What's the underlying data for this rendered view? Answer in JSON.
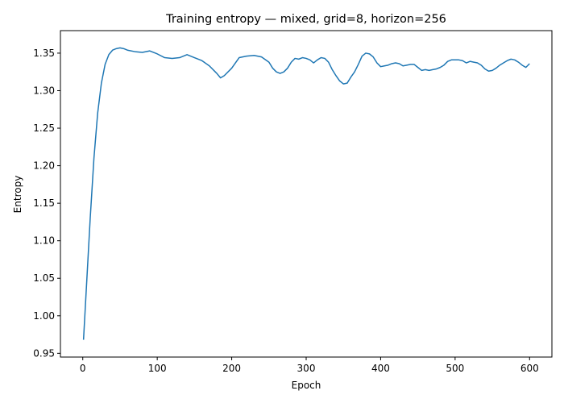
{
  "chart_data": {
    "type": "line",
    "title": "Training entropy — mixed, grid=8, horizon=256",
    "xlabel": "Epoch",
    "ylabel": "Entropy",
    "xlim": [
      -30,
      630
    ],
    "ylim": [
      0.945,
      1.38
    ],
    "xticks": [
      0,
      100,
      200,
      300,
      400,
      500,
      600
    ],
    "yticks": [
      0.95,
      1.0,
      1.05,
      1.1,
      1.15,
      1.2,
      1.25,
      1.3,
      1.35
    ],
    "ytick_labels": [
      "0.95",
      "1.00",
      "1.05",
      "1.10",
      "1.15",
      "1.20",
      "1.25",
      "1.30",
      "1.35"
    ],
    "xtick_labels": [
      "0",
      "100",
      "200",
      "300",
      "400",
      "500",
      "600"
    ],
    "grid": false,
    "line_color": "#1f77b4",
    "series": [
      {
        "x": [
          1,
          5,
          10,
          15,
          20,
          25,
          30,
          35,
          40,
          45,
          50,
          55,
          60,
          70,
          80,
          90,
          100,
          110,
          120,
          130,
          140,
          150,
          160,
          170,
          180,
          185,
          190,
          200,
          210,
          220,
          230,
          240,
          250,
          255,
          260,
          265,
          270,
          275,
          280,
          285,
          290,
          295,
          300,
          305,
          310,
          315,
          320,
          325,
          330,
          335,
          340,
          345,
          350,
          355,
          360,
          365,
          370,
          375,
          380,
          385,
          390,
          395,
          400,
          405,
          410,
          415,
          420,
          425,
          430,
          435,
          440,
          445,
          450,
          455,
          460,
          465,
          470,
          475,
          480,
          485,
          490,
          495,
          500,
          505,
          510,
          515,
          520,
          525,
          530,
          535,
          540,
          545,
          550,
          555,
          560,
          565,
          570,
          575,
          580,
          585,
          590,
          595,
          600
        ],
        "y": [
          0.968,
          1.04,
          1.13,
          1.21,
          1.27,
          1.31,
          1.335,
          1.348,
          1.354,
          1.356,
          1.357,
          1.356,
          1.354,
          1.352,
          1.351,
          1.353,
          1.349,
          1.344,
          1.343,
          1.344,
          1.348,
          1.344,
          1.34,
          1.333,
          1.323,
          1.317,
          1.32,
          1.33,
          1.344,
          1.346,
          1.347,
          1.345,
          1.338,
          1.33,
          1.325,
          1.323,
          1.325,
          1.33,
          1.338,
          1.343,
          1.342,
          1.344,
          1.343,
          1.341,
          1.337,
          1.341,
          1.344,
          1.343,
          1.338,
          1.328,
          1.32,
          1.313,
          1.309,
          1.31,
          1.318,
          1.325,
          1.335,
          1.346,
          1.35,
          1.349,
          1.345,
          1.337,
          1.332,
          1.333,
          1.334,
          1.336,
          1.337,
          1.336,
          1.333,
          1.334,
          1.335,
          1.335,
          1.331,
          1.327,
          1.328,
          1.327,
          1.328,
          1.329,
          1.331,
          1.334,
          1.339,
          1.341,
          1.341,
          1.341,
          1.34,
          1.337,
          1.339,
          1.338,
          1.337,
          1.334,
          1.329,
          1.326,
          1.327,
          1.33,
          1.334,
          1.337,
          1.34,
          1.342,
          1.341,
          1.338,
          1.334,
          1.331,
          1.336
        ]
      }
    ]
  }
}
